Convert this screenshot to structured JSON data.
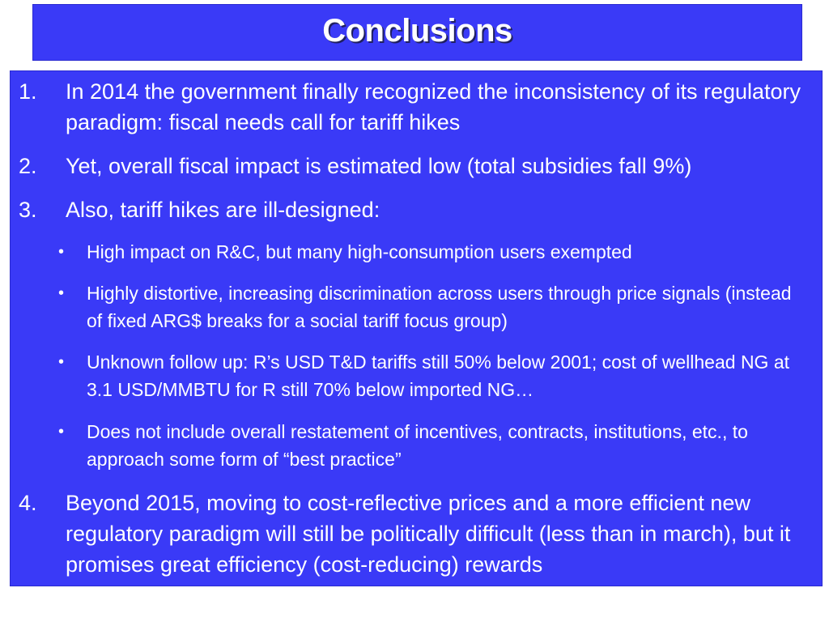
{
  "slide": {
    "title": "Conclusions",
    "items": [
      {
        "number": "1.",
        "text": "In 2014 the government finally recognized the inconsistency of its regulatory paradigm: fiscal needs call for tariff hikes"
      },
      {
        "number": "2.",
        "text": "Yet, overall fiscal impact is estimated low (total subsidies fall 9%)"
      },
      {
        "number": "3.",
        "text": "Also, tariff hikes are ill-designed:"
      },
      {
        "number": "4.",
        "text": "Beyond 2015, moving to cost-reflective prices and a more efficient new regulatory paradigm will still be politically difficult (less than in march), but it promises great efficiency (cost-reducing) rewards"
      }
    ],
    "bullets": [
      {
        "glyph": "•",
        "text": "High impact on R&C, but many high-consumption users exempted"
      },
      {
        "glyph": "•",
        "text": "Highly distortive, increasing discrimination across users through price signals (instead of fixed ARG$ breaks for a social tariff focus group)"
      },
      {
        "glyph": "•",
        "text": "Unknown follow up: R’s USD T&D tariffs still 50% below 2001; cost of wellhead NG at 3.1 USD/MMBTU for R still 70% below imported NG…"
      },
      {
        "glyph": "•",
        "text": "Does not include overall restatement of incentives, contracts, institutions, etc., to approach some form of “best practice”"
      }
    ]
  },
  "colors": {
    "panel": "#3a3af7",
    "text": "#ffffff",
    "background": "#ffffff"
  }
}
